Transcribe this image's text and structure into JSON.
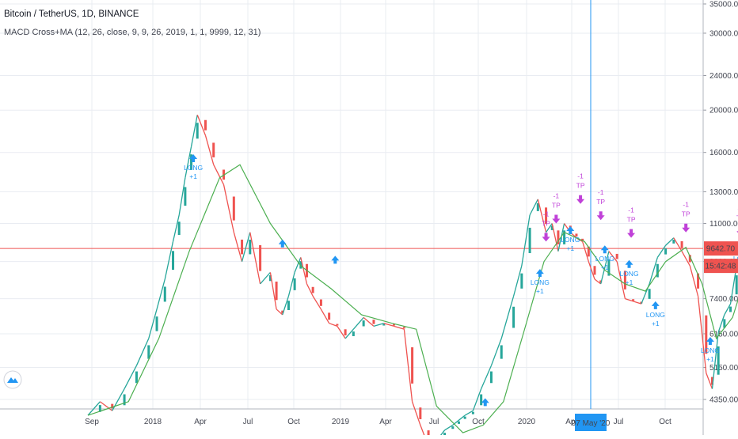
{
  "header": {
    "title": "Bitcoin / TetherUS, 1D, BINANCE",
    "study": "MACD Cross+MA (12, 26, close, 9, 9, 26, 2019, 1, 1, 9999, 12, 31)"
  },
  "colors": {
    "up": "#26a69a",
    "down": "#ef5350",
    "ma": "#4caf50",
    "signal_long": "#2196f3",
    "signal_tp": "#c041d8",
    "price_line": "#ef5350",
    "crosshair": "#2196f3",
    "grid": "#e9ecf2"
  },
  "chart_data": {
    "type": "line",
    "title": "Bitcoin / TetherUS, 1D, BINANCE",
    "scale": "log",
    "y_ticks": [
      "4350.00",
      "5150.00",
      "6150.00",
      "7400.00",
      "9000.00",
      "11000.00",
      "13000.00",
      "16000.00",
      "20000.00",
      "24000.00",
      "30000.00",
      "35000.00"
    ],
    "x_ticks": [
      "Sep",
      "2018",
      "Apr",
      "Jul",
      "Oct",
      "2019",
      "Apr",
      "Jul",
      "Oct",
      "2020",
      "Apr",
      "Jul",
      "Oct"
    ],
    "current_price": "9642.70",
    "countdown": "15:42:48",
    "crosshair_date": "07 May '20",
    "series": [
      {
        "name": "Price",
        "t": [
          0,
          0.6,
          1.2,
          1.8,
          2.4,
          3.0,
          3.4,
          3.8,
          4.2,
          4.5,
          4.8,
          5.1,
          5.4,
          5.8,
          6.2,
          6.7,
          7.2,
          7.6,
          8.0,
          8.5,
          9.0,
          9.3,
          9.6,
          9.9,
          10.2,
          10.5,
          10.8,
          11.1,
          11.5,
          11.9,
          12.3,
          12.7,
          13.1,
          13.6,
          14.1,
          14.6,
          15.1,
          15.6,
          16.0,
          16.4,
          16.8,
          17.2,
          17.6,
          18.0,
          18.3,
          18.6,
          19.0,
          19.4,
          19.9,
          20.4,
          21.0,
          21.4,
          21.8,
          22.2,
          22.6,
          22.9,
          23.2,
          23.5,
          23.8,
          24.1,
          24.4,
          24.7,
          25.0,
          25.3,
          25.7,
          26.1,
          26.5,
          26.9,
          27.3,
          27.7,
          28.1,
          28.5,
          28.9,
          29.3,
          29.7,
          30.1,
          30.5,
          30.8,
          31.1,
          31.4,
          31.7,
          32.0,
          32.4,
          32.8,
          33.2,
          33.5
        ],
        "values": [
          4000,
          4300,
          4100,
          4600,
          5200,
          6000,
          7000,
          8200,
          10000,
          11500,
          14000,
          16500,
          19500,
          17500,
          15000,
          13500,
          10500,
          9000,
          10500,
          8000,
          8500,
          7000,
          6800,
          7500,
          8500,
          9200,
          8000,
          7500,
          7000,
          6500,
          6400,
          6000,
          6300,
          6700,
          6400,
          6500,
          6400,
          6300,
          4300,
          3800,
          3400,
          3500,
          3700,
          3800,
          3900,
          4000,
          4100,
          4600,
          5200,
          6000,
          7500,
          8800,
          11500,
          12500,
          10500,
          11000,
          9500,
          11000,
          10500,
          10200,
          10000,
          9000,
          8200,
          8000,
          9500,
          9000,
          7400,
          7300,
          7200,
          8000,
          9200,
          9800,
          10200,
          9500,
          8800,
          7500,
          5000,
          4600,
          6200,
          6800,
          7200,
          8800,
          9200,
          9400,
          9700,
          9650
        ]
      },
      {
        "name": "MA",
        "t": [
          0,
          2.0,
          3.5,
          5.0,
          6.5,
          7.5,
          9.0,
          10.5,
          12.0,
          13.5,
          15.0,
          16.2,
          17.2,
          18.5,
          19.5,
          20.5,
          21.5,
          22.5,
          23.5,
          24.5,
          25.5,
          26.5,
          27.5,
          28.5,
          29.5,
          30.3,
          31.0,
          31.8,
          32.5,
          33.5
        ],
        "values": [
          4000,
          4300,
          6000,
          9500,
          14000,
          15000,
          11000,
          8800,
          7800,
          6800,
          6500,
          6300,
          4200,
          3650,
          3800,
          4300,
          6200,
          9000,
          10500,
          10000,
          8600,
          8000,
          7700,
          9000,
          9700,
          8000,
          6000,
          6700,
          8500,
          9400
        ]
      }
    ],
    "signals": [
      {
        "type": "LONG",
        "label": "LONG",
        "sub": "+1",
        "t": 5.2,
        "price": 15200
      },
      {
        "type": "LONG",
        "label": "",
        "sub": "",
        "t": 9.6,
        "price": 9700
      },
      {
        "type": "LONG",
        "label": "",
        "sub": "",
        "t": 12.2,
        "price": 8900
      },
      {
        "type": "LONG",
        "label": "",
        "sub": "",
        "t": 19.6,
        "price": 4200
      },
      {
        "type": "LONG",
        "label": "LONG",
        "sub": "+1",
        "t": 22.3,
        "price": 8300
      },
      {
        "type": "LONG",
        "label": "LONG",
        "sub": "+1",
        "t": 23.8,
        "price": 10400
      },
      {
        "type": "LONG",
        "label": "LONG",
        "sub": "+1",
        "t": 25.5,
        "price": 9400
      },
      {
        "type": "LONG",
        "label": "LONG",
        "sub": "+1",
        "t": 26.7,
        "price": 8700
      },
      {
        "type": "LONG",
        "label": "LONG",
        "sub": "+1",
        "t": 28.0,
        "price": 7000
      },
      {
        "type": "LONG",
        "label": "LONG",
        "sub": "+1",
        "t": 30.7,
        "price": 5800
      },
      {
        "type": "LONG",
        "label": "LONG",
        "sub": "+1",
        "t": 32.3,
        "price": 9400
      },
      {
        "type": "TP",
        "label": "TP",
        "sub": "-1",
        "t": 22.6,
        "price": 10000
      },
      {
        "type": "TP",
        "label": "TP",
        "sub": "-1",
        "t": 23.1,
        "price": 11000
      },
      {
        "type": "TP",
        "label": "TP",
        "sub": "-1",
        "t": 24.3,
        "price": 12200
      },
      {
        "type": "TP",
        "label": "TP",
        "sub": "-1",
        "t": 25.3,
        "price": 11200
      },
      {
        "type": "TP",
        "label": "TP",
        "sub": "-1",
        "t": 26.8,
        "price": 10200
      },
      {
        "type": "TP",
        "label": "TP",
        "sub": "-1",
        "t": 29.5,
        "price": 10500
      },
      {
        "type": "TP",
        "label": "TP",
        "sub": "-1",
        "t": 32.2,
        "price": 10300
      }
    ]
  }
}
